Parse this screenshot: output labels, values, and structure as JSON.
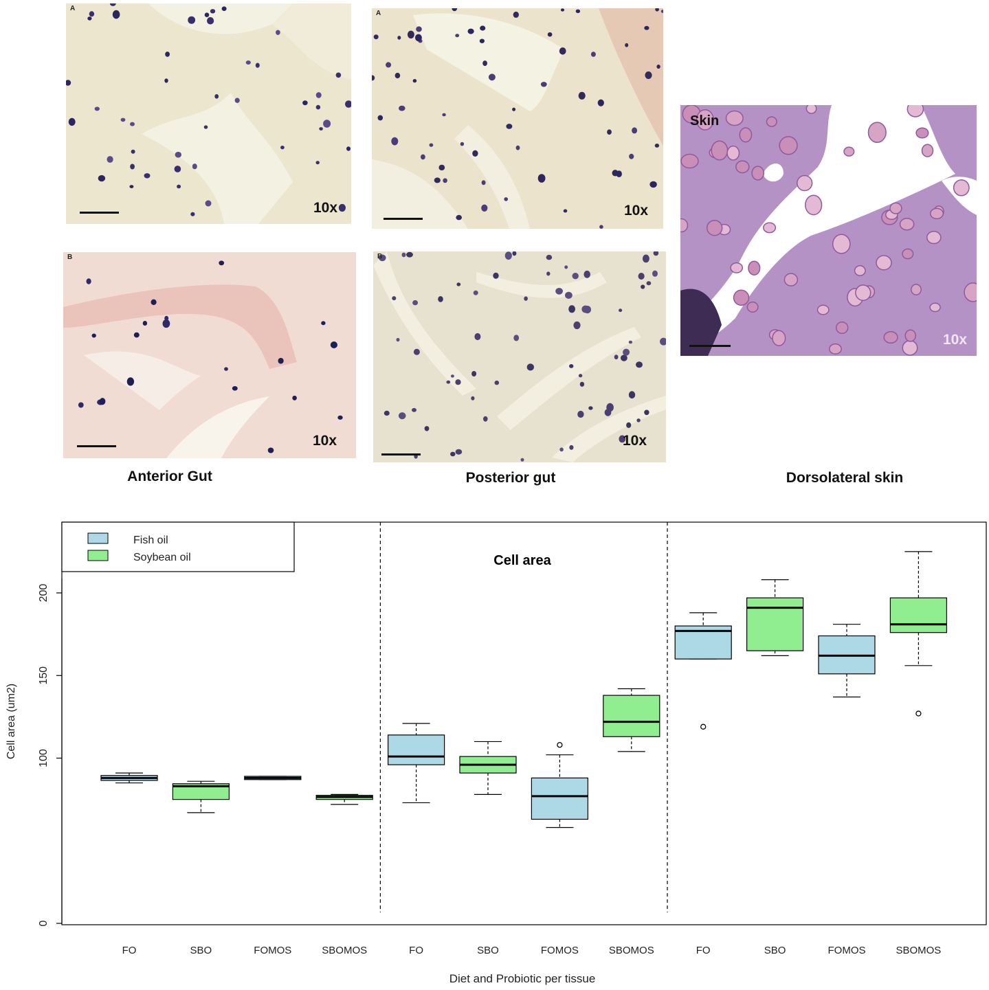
{
  "micrographs": [
    {
      "id": "ag-a",
      "letter": "A",
      "magnification": "10x",
      "stain": "light"
    },
    {
      "id": "ag-b",
      "letter": "B",
      "magnification": "10x",
      "stain": "pink"
    },
    {
      "id": "pg-a",
      "letter": "A",
      "magnification": "10x",
      "stain": "light-fibrous"
    },
    {
      "id": "pg-b",
      "letter": "B",
      "magnification": "10x",
      "stain": "grey"
    },
    {
      "id": "skin",
      "label": "Skin",
      "magnification": "10x",
      "stain": "purple"
    }
  ],
  "captions": {
    "anterior": "Anterior Gut",
    "posterior": "Posterior gut",
    "skin": "Dorsolateral skin"
  },
  "colors": {
    "fish_oil": "#add8e6",
    "soybean_oil": "#90ee90"
  },
  "chart_data": {
    "type": "box",
    "title": "Cell area",
    "xlabel": "Diet and Probiotic per tissue",
    "ylabel": "Cell area (um2)",
    "ylim": [
      0,
      225
    ],
    "yticks": [
      0,
      100,
      150,
      200
    ],
    "legend": {
      "position": "top-left",
      "entries": [
        {
          "name": "Fish oil",
          "color": "#add8e6"
        },
        {
          "name": "Soybean oil",
          "color": "#90ee90"
        }
      ]
    },
    "separators_after_group": [
      4,
      8
    ],
    "boxes": [
      {
        "label": "FO",
        "series": "Fish oil",
        "whisker_low": 85,
        "q1": 86.5,
        "median": 88,
        "q3": 89.5,
        "whisker_high": 91,
        "outliers": []
      },
      {
        "label": "SBO",
        "series": "Soybean oil",
        "whisker_low": 67,
        "q1": 75,
        "median": 83,
        "q3": 84.5,
        "whisker_high": 86,
        "outliers": []
      },
      {
        "label": "FOMOS",
        "series": "Fish oil",
        "whisker_low": 87,
        "q1": 87,
        "median": 88,
        "q3": 89,
        "whisker_high": 89,
        "outliers": []
      },
      {
        "label": "SBOMOS",
        "series": "Soybean oil",
        "whisker_low": 72,
        "q1": 75,
        "median": 76.5,
        "q3": 77.5,
        "whisker_high": 78,
        "outliers": []
      },
      {
        "label": "FO",
        "series": "Fish oil",
        "whisker_low": 73,
        "q1": 96,
        "median": 101,
        "q3": 114,
        "whisker_high": 121,
        "outliers": []
      },
      {
        "label": "SBO",
        "series": "Soybean oil",
        "whisker_low": 78,
        "q1": 91,
        "median": 96,
        "q3": 101,
        "whisker_high": 110,
        "outliers": []
      },
      {
        "label": "FOMOS",
        "series": "Fish oil",
        "whisker_low": 58,
        "q1": 63,
        "median": 77,
        "q3": 88,
        "whisker_high": 102,
        "outliers": [
          108
        ]
      },
      {
        "label": "SBOMOS",
        "series": "Soybean oil",
        "whisker_low": 104,
        "q1": 113,
        "median": 122,
        "q3": 138,
        "whisker_high": 142,
        "outliers": []
      },
      {
        "label": "FO",
        "series": "Fish oil",
        "whisker_low": 160,
        "q1": 160,
        "median": 177,
        "q3": 180,
        "whisker_high": 188,
        "outliers": [
          119
        ]
      },
      {
        "label": "SBO",
        "series": "Soybean oil",
        "whisker_low": 162,
        "q1": 165,
        "median": 191,
        "q3": 197,
        "whisker_high": 208,
        "outliers": []
      },
      {
        "label": "FOMOS",
        "series": "Fish oil",
        "whisker_low": 137,
        "q1": 151,
        "median": 162,
        "q3": 174,
        "whisker_high": 181,
        "outliers": []
      },
      {
        "label": "SBOMOS",
        "series": "Soybean oil",
        "whisker_low": 156,
        "q1": 176,
        "median": 181,
        "q3": 197,
        "whisker_high": 225,
        "outliers": [
          127
        ]
      }
    ]
  }
}
